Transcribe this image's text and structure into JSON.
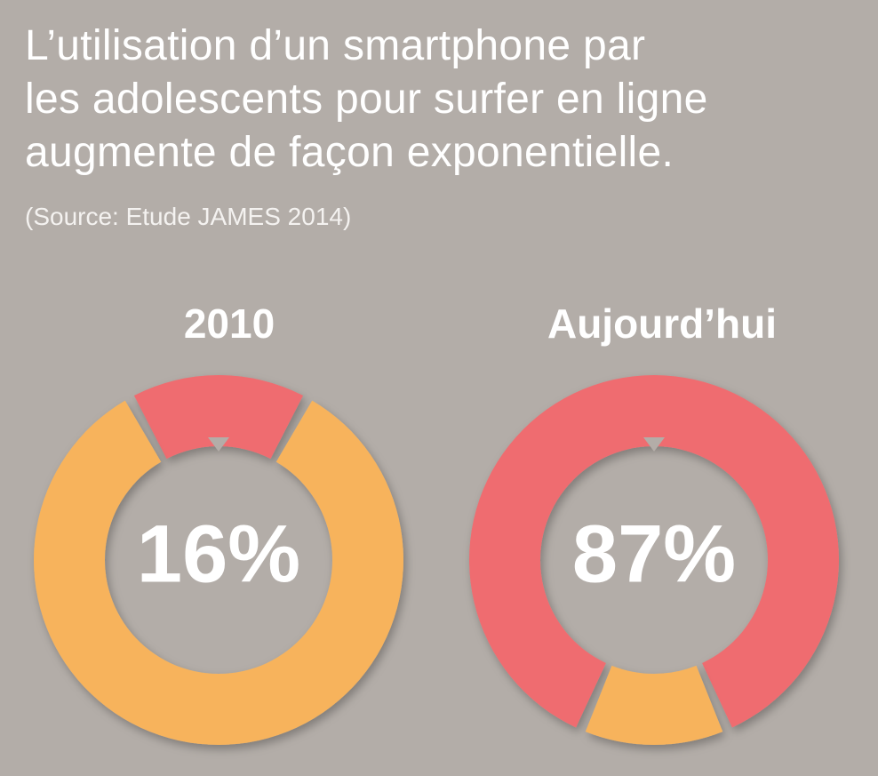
{
  "title_lines": [
    "L’utilisation d’un smartphone par",
    "les adolescents pour surfer en ligne",
    "augmente de façon exponentielle."
  ],
  "source": "(Source: Etude JAMES 2014)",
  "colors": {
    "background": "#b3ada8",
    "smartphone": "#ef6c70",
    "other": "#f7b35c",
    "text": "#ffffff"
  },
  "chart_data": [
    {
      "type": "pie",
      "donut": true,
      "title": "2010",
      "center_label": "16%",
      "slices": [
        {
          "value": 16,
          "color": "#ef6c70"
        },
        {
          "value": 84,
          "color": "#f7b35c"
        }
      ]
    },
    {
      "type": "pie",
      "donut": true,
      "title": "Aujourd’hui",
      "center_label": "87%",
      "slices": [
        {
          "value": 87,
          "color": "#ef6c70"
        },
        {
          "value": 13,
          "color": "#f7b35c"
        }
      ]
    }
  ]
}
